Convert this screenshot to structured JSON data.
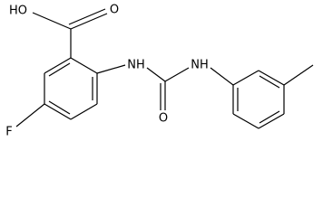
{
  "atoms": [
    {
      "label": "HO"
    },
    {
      "label": "O"
    },
    {
      "label": "NH"
    },
    {
      "label": "O"
    },
    {
      "label": "NH"
    },
    {
      "label": "F"
    }
  ]
}
